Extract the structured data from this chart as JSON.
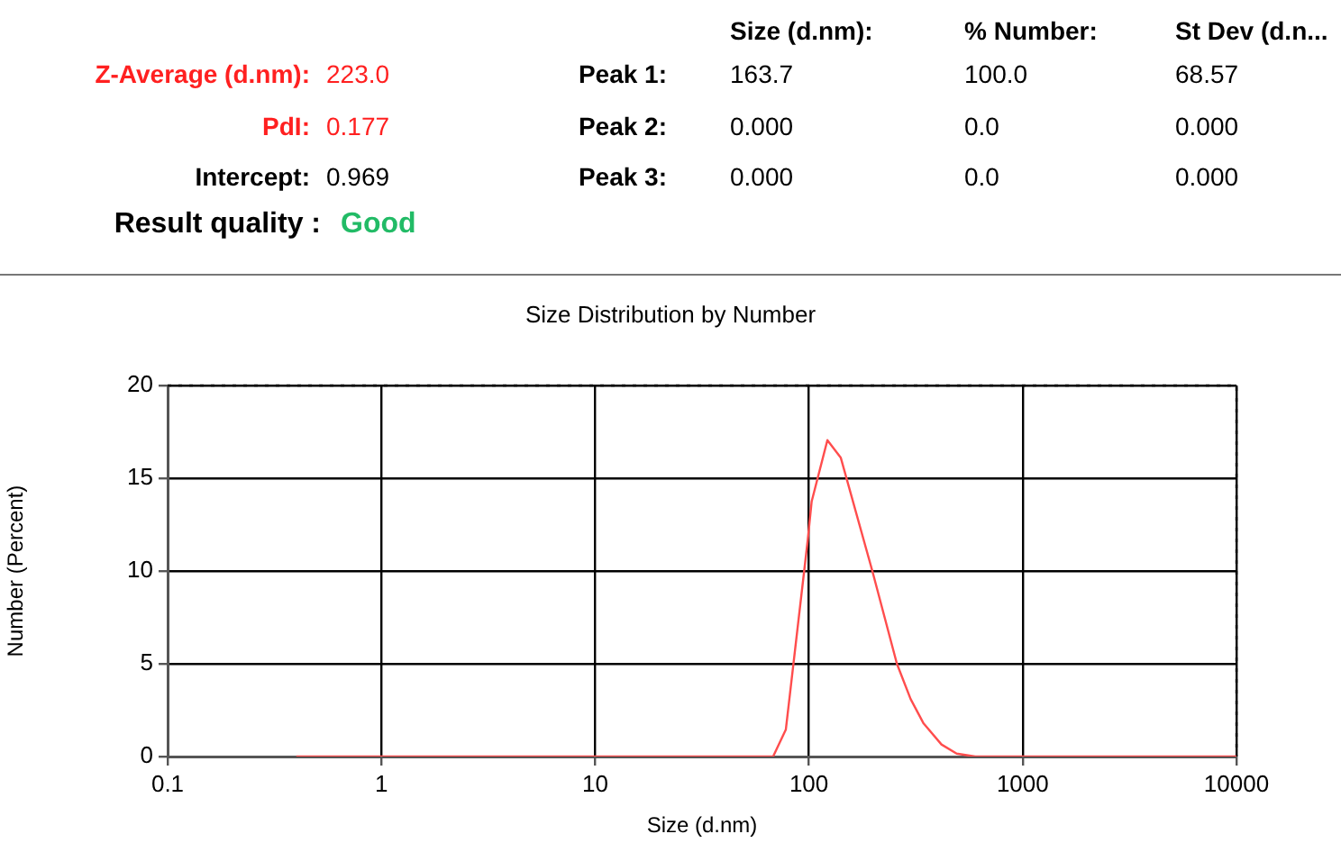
{
  "chart_data": {
    "type": "line",
    "title": "Size Distribution by Number",
    "xlabel": "Size (d.nm)",
    "ylabel": "Number (Percent)",
    "annotations": [
      "Size (d.nm):",
      "% Number:",
      "St Dev (d.n...",
      "Z-Average (d.nm):",
      "223.0",
      "Peak 1:",
      "163.7",
      "100.0",
      "68.57",
      "PdI:",
      "0.177",
      "Peak 2:",
      "0.000",
      "0.0",
      "0.000",
      "Intercept:",
      "0.969",
      "Peak 3:",
      "0.000",
      "0.0",
      "0.000",
      "Result quality :",
      "Good"
    ],
    "series": [
      {
        "color": "#ff4d4d",
        "x": [
          0.4,
          10,
          68,
          78,
          98.7,
          103,
          122,
          141,
          198,
          258,
          299,
          344,
          417,
          491,
          600,
          10000
        ],
        "values": [
          0,
          0,
          0,
          1.46,
          11.65,
          13.75,
          17.05,
          16.1,
          10.0,
          5.0,
          3.1,
          1.78,
          0.65,
          0.16,
          0,
          0
        ]
      }
    ],
    "log": "x",
    "xlim": [
      0.1,
      10000
    ],
    "xticks": [
      0.1,
      1,
      10,
      100,
      1000,
      10000
    ],
    "ylim": [
      0,
      20
    ],
    "yticks": [
      0,
      5,
      10,
      15,
      20
    ],
    "grid": true,
    "legend": false,
    "marker": "none",
    "line_style": "solid"
  }
}
